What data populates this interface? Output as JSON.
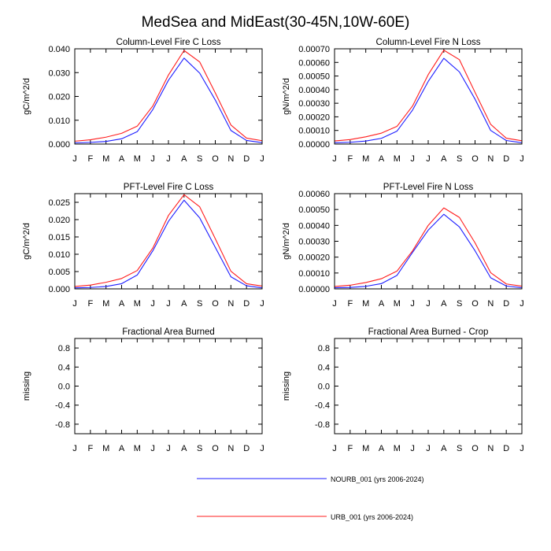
{
  "title": "MedSea and MidEast(30-45N,10W-60E)",
  "months": [
    "J",
    "F",
    "M",
    "A",
    "M",
    "J",
    "J",
    "A",
    "S",
    "O",
    "N",
    "D",
    "J"
  ],
  "colors": {
    "nourb": "#1c1cff",
    "urb": "#ff1c1c",
    "axis": "#000000"
  },
  "legend": {
    "nourb_label": "NOURB_001 (yrs 2006-2024)",
    "urb_label": "URB_001 (yrs 2006-2024)"
  },
  "chart_data": [
    {
      "type": "line",
      "title": "Column-Level Fire C Loss",
      "ylabel": "gC/m^2/d",
      "xlabel": "",
      "ylim": [
        0,
        0.04
      ],
      "yticks": [
        0,
        0.01,
        0.02,
        0.03,
        0.04
      ],
      "ytick_labels": [
        "0.000",
        "0.010",
        "0.020",
        "0.030",
        "0.040"
      ],
      "categories": [
        "J",
        "F",
        "M",
        "A",
        "M",
        "J",
        "J",
        "A",
        "S",
        "O",
        "N",
        "D",
        "J"
      ],
      "series": [
        {
          "name": "NOURB_001 (yrs 2006-2024)",
          "values": [
            0.0005,
            0.0007,
            0.0011,
            0.0022,
            0.0052,
            0.0145,
            0.0268,
            0.0361,
            0.0298,
            0.0185,
            0.0057,
            0.0015,
            0.0006
          ]
        },
        {
          "name": "URB_001 (yrs 2006-2024)",
          "values": [
            0.0012,
            0.0018,
            0.0029,
            0.0045,
            0.0075,
            0.016,
            0.029,
            0.0393,
            0.0345,
            0.0215,
            0.008,
            0.0025,
            0.0014
          ]
        }
      ]
    },
    {
      "type": "line",
      "title": "Column-Level Fire N Loss",
      "ylabel": "gN/m^2/d",
      "xlabel": "",
      "ylim": [
        0,
        0.0007
      ],
      "yticks": [
        0,
        0.0001,
        0.0002,
        0.0003,
        0.0004,
        0.0005,
        0.0006,
        0.0007
      ],
      "ytick_labels": [
        "0.00000",
        "0.00010",
        "0.00020",
        "0.00030",
        "0.00040",
        "0.00050",
        "0.00060",
        "0.00070"
      ],
      "categories": [
        "J",
        "F",
        "M",
        "A",
        "M",
        "J",
        "J",
        "A",
        "S",
        "O",
        "N",
        "D",
        "J"
      ],
      "series": [
        {
          "name": "NOURB_001 (yrs 2006-2024)",
          "values": [
            1e-05,
            1.3e-05,
            2.2e-05,
            4.2e-05,
            9.5e-05,
            0.00025,
            0.00046,
            0.00063,
            0.00053,
            0.00033,
            0.0001,
            2.6e-05,
            1e-05
          ]
        },
        {
          "name": "URB_001 (yrs 2006-2024)",
          "values": [
            2.3e-05,
            3.3e-05,
            5.3e-05,
            8e-05,
            0.00013,
            0.00028,
            0.00051,
            0.00069,
            0.00062,
            0.00038,
            0.000145,
            4.3e-05,
            2.4e-05
          ]
        }
      ]
    },
    {
      "type": "line",
      "title": "PFT-Level Fire C Loss",
      "ylabel": "gC/m^2/d",
      "xlabel": "",
      "ylim": [
        0,
        0.0275
      ],
      "yticks": [
        0,
        0.005,
        0.01,
        0.015,
        0.02,
        0.025
      ],
      "ytick_labels": [
        "0.000",
        "0.005",
        "0.010",
        "0.015",
        "0.020",
        "0.025"
      ],
      "categories": [
        "J",
        "F",
        "M",
        "A",
        "M",
        "J",
        "J",
        "A",
        "S",
        "O",
        "N",
        "D",
        "J"
      ],
      "series": [
        {
          "name": "NOURB_001 (yrs 2006-2024)",
          "values": [
            0.0003,
            0.0004,
            0.0007,
            0.0015,
            0.004,
            0.011,
            0.0195,
            0.0256,
            0.0205,
            0.012,
            0.0035,
            0.0009,
            0.0003
          ]
        },
        {
          "name": "URB_001 (yrs 2006-2024)",
          "values": [
            0.0007,
            0.0011,
            0.0019,
            0.003,
            0.0053,
            0.0118,
            0.0212,
            0.0272,
            0.0237,
            0.0145,
            0.0051,
            0.0015,
            0.0008
          ]
        }
      ]
    },
    {
      "type": "line",
      "title": "PFT-Level Fire N Loss",
      "ylabel": "gN/m^2/d",
      "xlabel": "",
      "ylim": [
        0,
        0.0006
      ],
      "yticks": [
        0,
        0.0001,
        0.0002,
        0.0003,
        0.0004,
        0.0005,
        0.0006
      ],
      "ytick_labels": [
        "0.00000",
        "0.00010",
        "0.00020",
        "0.00030",
        "0.00040",
        "0.00050",
        "0.00060"
      ],
      "categories": [
        "J",
        "F",
        "M",
        "A",
        "M",
        "J",
        "J",
        "A",
        "S",
        "O",
        "N",
        "D",
        "J"
      ],
      "series": [
        {
          "name": "NOURB_001 (yrs 2006-2024)",
          "values": [
            7e-06,
            9e-06,
            1.6e-05,
            3.3e-05,
            8.5e-05,
            0.00023,
            0.00037,
            0.00047,
            0.00039,
            0.00024,
            7e-05,
            1.8e-05,
            7e-06
          ]
        },
        {
          "name": "URB_001 (yrs 2006-2024)",
          "values": [
            1.5e-05,
            2.3e-05,
            4e-05,
            6.4e-05,
            0.000112,
            0.00024,
            0.0004,
            0.00051,
            0.00045,
            0.00029,
            0.000102,
            3.1e-05,
            1.7e-05
          ]
        }
      ]
    },
    {
      "type": "line",
      "title": "Fractional Area Burned",
      "ylabel": "missing",
      "xlabel": "",
      "ylim": [
        -1,
        1
      ],
      "yticks": [
        -0.8,
        -0.4,
        0,
        0.4,
        0.8
      ],
      "ytick_labels": [
        "-0.8",
        "-0.4",
        "0.0",
        "0.4",
        "0.8"
      ],
      "categories": [
        "J",
        "F",
        "M",
        "A",
        "M",
        "J",
        "J",
        "A",
        "S",
        "O",
        "N",
        "D",
        "J"
      ],
      "series": []
    },
    {
      "type": "line",
      "title": "Fractional Area Burned - Crop",
      "ylabel": "missing",
      "xlabel": "",
      "ylim": [
        -1,
        1
      ],
      "yticks": [
        -0.8,
        -0.4,
        0,
        0.4,
        0.8
      ],
      "ytick_labels": [
        "-0.8",
        "-0.4",
        "0.0",
        "0.4",
        "0.8"
      ],
      "categories": [
        "J",
        "F",
        "M",
        "A",
        "M",
        "J",
        "J",
        "A",
        "S",
        "O",
        "N",
        "D",
        "J"
      ],
      "series": []
    }
  ]
}
